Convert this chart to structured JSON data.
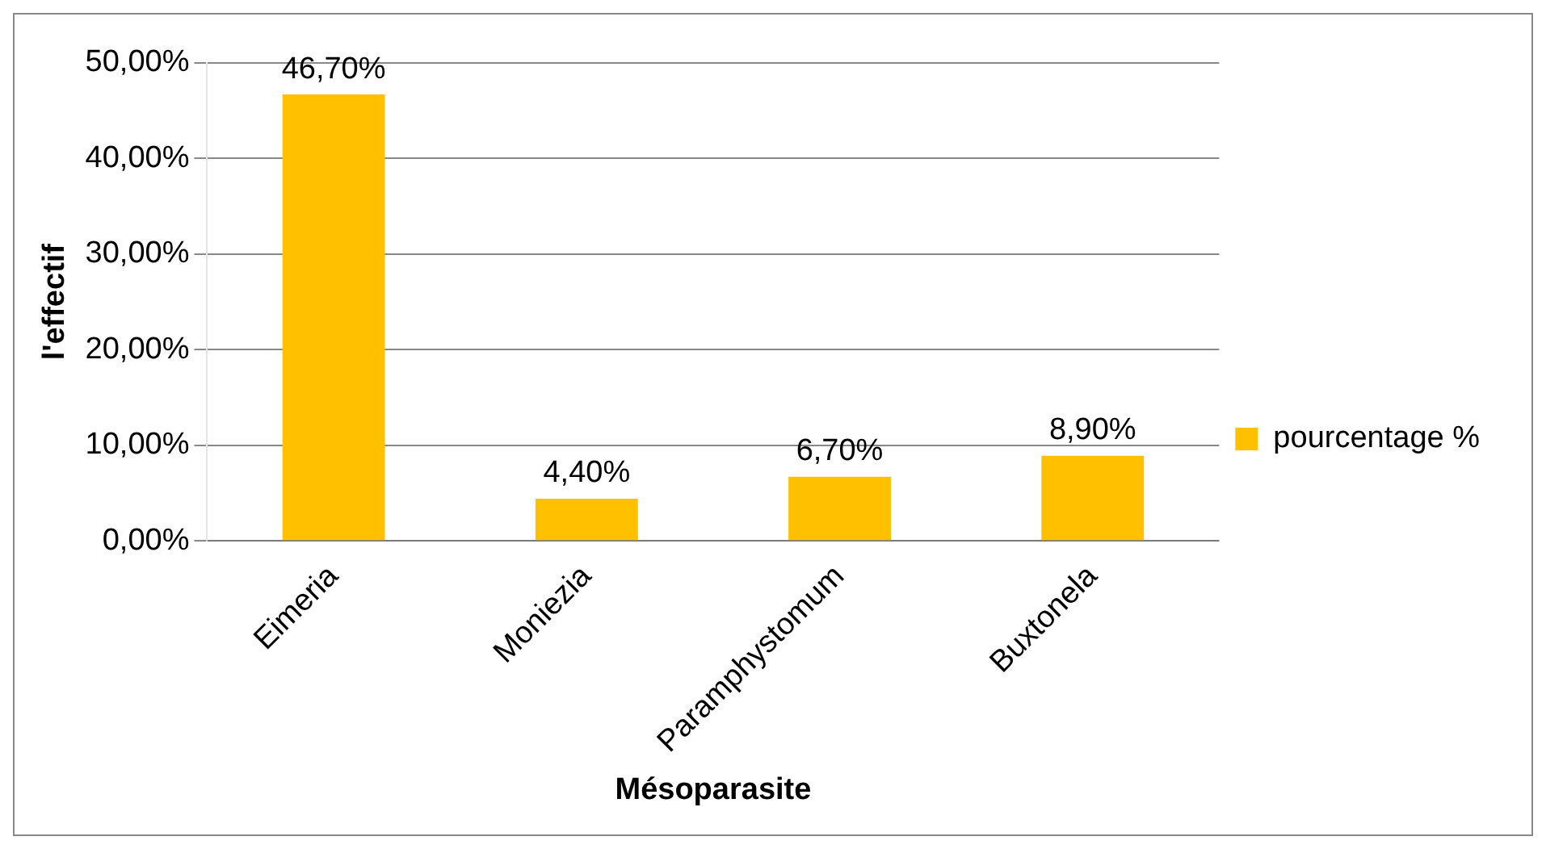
{
  "chart_data": {
    "type": "bar",
    "xlabel": "Mésoparasite",
    "ylabel": "l'effectif",
    "categories": [
      "Eimeria",
      "Moniezia",
      "Paramphystomum",
      "Buxtonela"
    ],
    "series": [
      {
        "name": "pourcentage %",
        "color": "#ffc000",
        "values": [
          46.7,
          4.4,
          6.7,
          8.9
        ],
        "value_labels": [
          "46,70%",
          "4,40%",
          "6,70%",
          "8,90%"
        ]
      }
    ],
    "ylim": [
      0,
      50
    ],
    "yticks": [
      {
        "value": 0,
        "label": "0,00%"
      },
      {
        "value": 10,
        "label": "10,00%"
      },
      {
        "value": 20,
        "label": "20,00%"
      },
      {
        "value": 30,
        "label": "30,00%"
      },
      {
        "value": 40,
        "label": "40,00%"
      },
      {
        "value": 50,
        "label": "50,00%"
      }
    ],
    "grid": "y",
    "legend": "right"
  }
}
